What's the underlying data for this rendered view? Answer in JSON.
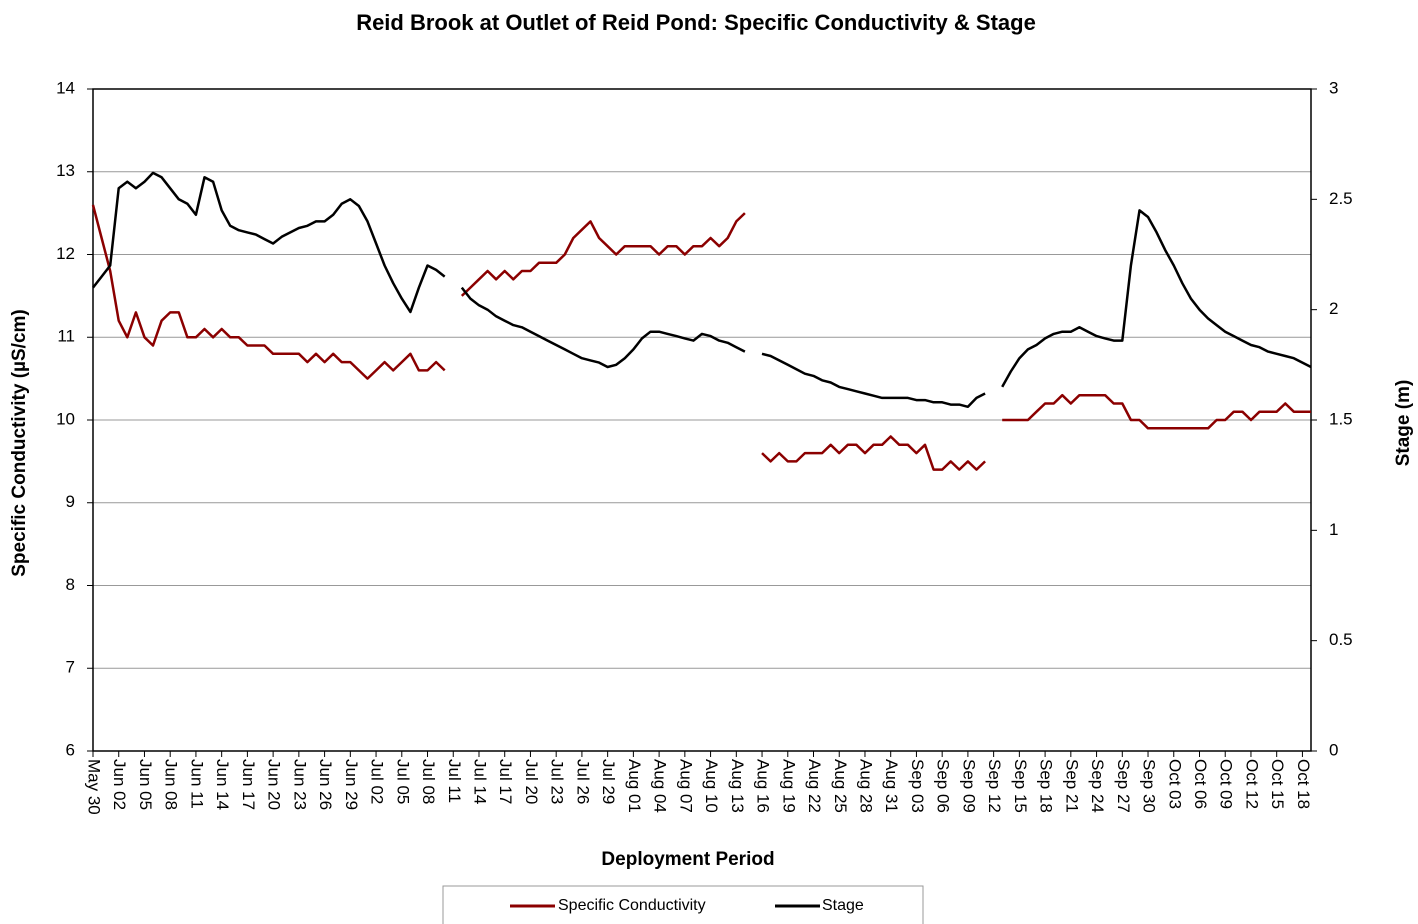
{
  "chart_data": {
    "type": "line",
    "title": "Reid Brook at Outlet of Reid Pond: Specific Conductivity & Stage",
    "x_label": "Deployment Period",
    "y_label": "Specific Conductivity (µS/cm)",
    "y2_label": "Stage (m)",
    "x": [
      0,
      1,
      2,
      3,
      4,
      5,
      6,
      7,
      8,
      9,
      10,
      11,
      12,
      13,
      14,
      15,
      16,
      17,
      18,
      19,
      20,
      21,
      22,
      23,
      24,
      25,
      26,
      27,
      28,
      29,
      30,
      31,
      32,
      33,
      34,
      35,
      36,
      37,
      38,
      39,
      40,
      41,
      42,
      43,
      44,
      45,
      46,
      47,
      48,
      49,
      50,
      51,
      52,
      53,
      54,
      55,
      56,
      57,
      58,
      59,
      60,
      61,
      62,
      63,
      64,
      65,
      66,
      67,
      68,
      69,
      70,
      71,
      72,
      73,
      74,
      75,
      76,
      77,
      78,
      79,
      80,
      81,
      82,
      83,
      84,
      85,
      86,
      87,
      88,
      89,
      90,
      91,
      92,
      93,
      94,
      95,
      96,
      97,
      98,
      99,
      100,
      101,
      102,
      103,
      104,
      105,
      106,
      107,
      108,
      109,
      110,
      111,
      112,
      113,
      114,
      115,
      116,
      117,
      118,
      119,
      120,
      121,
      122,
      123,
      124,
      125,
      126,
      127,
      128,
      129,
      130,
      131,
      132,
      133,
      134,
      135,
      136,
      137,
      138,
      139,
      140,
      141,
      142
    ],
    "xlim": [
      0,
      142
    ],
    "xticks": [
      {
        "value": 0,
        "label": "May 30"
      },
      {
        "value": 3,
        "label": "Jun 02"
      },
      {
        "value": 6,
        "label": "Jun 05"
      },
      {
        "value": 9,
        "label": "Jun 08"
      },
      {
        "value": 12,
        "label": "Jun 11"
      },
      {
        "value": 15,
        "label": "Jun 14"
      },
      {
        "value": 18,
        "label": "Jun 17"
      },
      {
        "value": 21,
        "label": "Jun 20"
      },
      {
        "value": 24,
        "label": "Jun 23"
      },
      {
        "value": 27,
        "label": "Jun 26"
      },
      {
        "value": 30,
        "label": "Jun 29"
      },
      {
        "value": 33,
        "label": "Jul 02"
      },
      {
        "value": 36,
        "label": "Jul 05"
      },
      {
        "value": 39,
        "label": "Jul 08"
      },
      {
        "value": 42,
        "label": "Jul 11"
      },
      {
        "value": 45,
        "label": "Jul 14"
      },
      {
        "value": 48,
        "label": "Jul 17"
      },
      {
        "value": 51,
        "label": "Jul 20"
      },
      {
        "value": 54,
        "label": "Jul 23"
      },
      {
        "value": 57,
        "label": "Jul 26"
      },
      {
        "value": 60,
        "label": "Jul 29"
      },
      {
        "value": 63,
        "label": "Aug 01"
      },
      {
        "value": 66,
        "label": "Aug 04"
      },
      {
        "value": 69,
        "label": "Aug 07"
      },
      {
        "value": 72,
        "label": "Aug 10"
      },
      {
        "value": 75,
        "label": "Aug 13"
      },
      {
        "value": 78,
        "label": "Aug 16"
      },
      {
        "value": 81,
        "label": "Aug 19"
      },
      {
        "value": 84,
        "label": "Aug 22"
      },
      {
        "value": 87,
        "label": "Aug 25"
      },
      {
        "value": 90,
        "label": "Aug 28"
      },
      {
        "value": 93,
        "label": "Aug 31"
      },
      {
        "value": 96,
        "label": "Sep 03"
      },
      {
        "value": 99,
        "label": "Sep 06"
      },
      {
        "value": 102,
        "label": "Sep 09"
      },
      {
        "value": 105,
        "label": "Sep 12"
      },
      {
        "value": 108,
        "label": "Sep 15"
      },
      {
        "value": 111,
        "label": "Sep 18"
      },
      {
        "value": 114,
        "label": "Sep 21"
      },
      {
        "value": 117,
        "label": "Sep 24"
      },
      {
        "value": 120,
        "label": "Sep 27"
      },
      {
        "value": 123,
        "label": "Sep 30"
      },
      {
        "value": 126,
        "label": "Oct 03"
      },
      {
        "value": 129,
        "label": "Oct 06"
      },
      {
        "value": 132,
        "label": "Oct 09"
      },
      {
        "value": 135,
        "label": "Oct 12"
      },
      {
        "value": 138,
        "label": "Oct 15"
      },
      {
        "value": 141,
        "label": "Oct 18"
      }
    ],
    "ylim": [
      6,
      14
    ],
    "yticks": [
      6,
      7,
      8,
      9,
      10,
      11,
      12,
      13,
      14
    ],
    "y2lim": [
      0,
      3
    ],
    "y2ticks": [
      0,
      0.5,
      1,
      1.5,
      2,
      2.5,
      3
    ],
    "grid": true,
    "legend": "bottom",
    "series": [
      {
        "name": "Specific Conductivity",
        "color": "#8b0000",
        "axis": "y",
        "values": [
          12.6,
          12.2,
          11.8,
          11.2,
          11.0,
          11.3,
          11.0,
          10.9,
          11.2,
          11.3,
          11.3,
          11.0,
          11.0,
          11.1,
          11.0,
          11.1,
          11.0,
          11.0,
          10.9,
          10.9,
          10.9,
          10.8,
          10.8,
          10.8,
          10.8,
          10.7,
          10.8,
          10.7,
          10.8,
          10.7,
          10.7,
          10.6,
          10.5,
          10.6,
          10.7,
          10.6,
          10.7,
          10.8,
          10.6,
          10.6,
          10.7,
          10.6,
          null,
          11.5,
          11.6,
          11.7,
          11.8,
          11.7,
          11.8,
          11.7,
          11.8,
          11.8,
          11.9,
          11.9,
          11.9,
          12.0,
          12.2,
          12.3,
          12.4,
          12.2,
          12.1,
          12.0,
          12.1,
          12.1,
          12.1,
          12.1,
          12.0,
          12.1,
          12.1,
          12.0,
          12.1,
          12.1,
          12.2,
          12.1,
          12.2,
          12.4,
          12.5,
          null,
          9.6,
          9.5,
          9.6,
          9.5,
          9.5,
          9.6,
          9.6,
          9.6,
          9.7,
          9.6,
          9.7,
          9.7,
          9.6,
          9.7,
          9.7,
          9.8,
          9.7,
          9.7,
          9.6,
          9.7,
          9.4,
          9.4,
          9.5,
          9.4,
          9.5,
          9.4,
          9.5,
          null,
          10.0,
          10.0,
          10.0,
          10.0,
          10.1,
          10.2,
          10.2,
          10.3,
          10.2,
          10.3,
          10.3,
          10.3,
          10.3,
          10.2,
          10.2,
          10.0,
          10.0,
          9.9,
          9.9,
          9.9,
          9.9,
          9.9,
          9.9,
          9.9,
          9.9,
          10.0,
          10.0,
          10.1,
          10.1,
          10.0,
          10.1,
          10.1,
          10.1,
          10.2,
          10.1,
          10.1,
          10.1
        ]
      },
      {
        "name": "Stage",
        "color": "#000000",
        "axis": "y2",
        "values": [
          2.1,
          2.15,
          2.2,
          2.55,
          2.58,
          2.55,
          2.58,
          2.62,
          2.6,
          2.55,
          2.5,
          2.48,
          2.43,
          2.6,
          2.58,
          2.45,
          2.38,
          2.36,
          2.35,
          2.34,
          2.32,
          2.3,
          2.33,
          2.35,
          2.37,
          2.38,
          2.4,
          2.4,
          2.43,
          2.48,
          2.5,
          2.47,
          2.4,
          2.3,
          2.2,
          2.12,
          2.05,
          1.99,
          2.1,
          2.2,
          2.18,
          2.15,
          null,
          2.1,
          2.05,
          2.02,
          2.0,
          1.97,
          1.95,
          1.93,
          1.92,
          1.9,
          1.88,
          1.86,
          1.84,
          1.82,
          1.8,
          1.78,
          1.77,
          1.76,
          1.74,
          1.75,
          1.78,
          1.82,
          1.87,
          1.9,
          1.9,
          1.89,
          1.88,
          1.87,
          1.86,
          1.89,
          1.88,
          1.86,
          1.85,
          1.83,
          1.81,
          null,
          1.8,
          1.79,
          1.77,
          1.75,
          1.73,
          1.71,
          1.7,
          1.68,
          1.67,
          1.65,
          1.64,
          1.63,
          1.62,
          1.61,
          1.6,
          1.6,
          1.6,
          1.6,
          1.59,
          1.59,
          1.58,
          1.58,
          1.57,
          1.57,
          1.56,
          1.6,
          1.62,
          null,
          1.65,
          1.72,
          1.78,
          1.82,
          1.84,
          1.87,
          1.89,
          1.9,
          1.9,
          1.92,
          1.9,
          1.88,
          1.87,
          1.86,
          1.86,
          2.2,
          2.45,
          2.42,
          2.35,
          2.27,
          2.2,
          2.12,
          2.05,
          2.0,
          1.96,
          1.93,
          1.9,
          1.88,
          1.86,
          1.84,
          1.83,
          1.81,
          1.8,
          1.79,
          1.78,
          1.76,
          1.74
        ]
      }
    ]
  }
}
